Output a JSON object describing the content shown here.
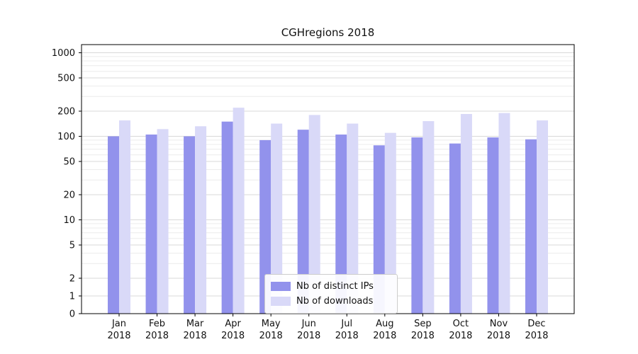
{
  "chart_data": {
    "type": "bar",
    "title": "CGHregions 2018",
    "categories": [
      "Jan",
      "Feb",
      "Mar",
      "Apr",
      "May",
      "Jun",
      "Jul",
      "Aug",
      "Sep",
      "Oct",
      "Nov",
      "Dec"
    ],
    "year_label": "2018",
    "series": [
      {
        "name": "Nb of distinct IPs",
        "color": "#9292ec",
        "values": [
          100,
          105,
          100,
          150,
          90,
          120,
          105,
          78,
          97,
          82,
          97,
          92
        ]
      },
      {
        "name": "Nb of downloads",
        "color": "#d9d9f8",
        "values": [
          155,
          122,
          132,
          220,
          142,
          180,
          142,
          110,
          152,
          185,
          190,
          155
        ]
      }
    ],
    "yticks": [
      0,
      1,
      2,
      5,
      10,
      20,
      50,
      100,
      200,
      500,
      1000
    ],
    "yscale": "symlog",
    "ylim": [
      0,
      1250
    ],
    "grid": true,
    "legend_position": "lower center"
  }
}
